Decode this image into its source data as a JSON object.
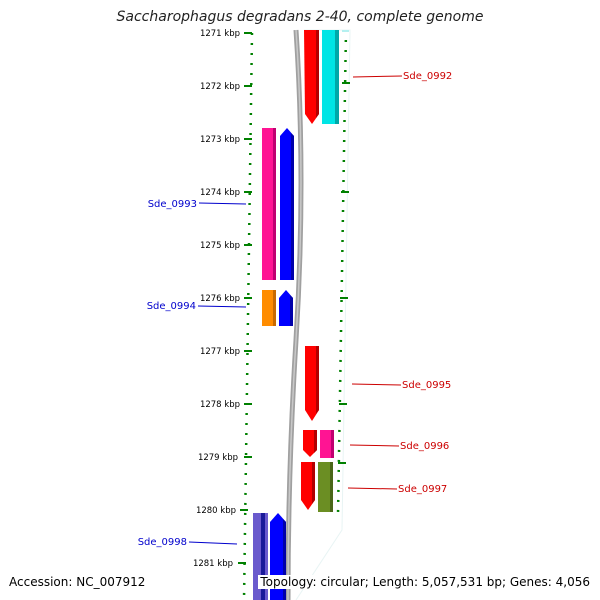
{
  "title": "Saccharophagus degradans 2-40, complete genome",
  "accession": "Accession: NC_007912",
  "summary": "Topology: circular; Length: 5,057,531 bp; Genes: 4,056",
  "ruler": {
    "ticks": [
      "1271 kbp",
      "1272 kbp",
      "1273 kbp",
      "1274 kbp",
      "1275 kbp",
      "1276 kbp",
      "1277 kbp",
      "1278 kbp",
      "1279 kbp",
      "1280 kbp",
      "1281 kbp"
    ]
  },
  "colors": {
    "red": "#ff0000",
    "cyan": "#00e5e5",
    "pink": "#ff1493",
    "blue": "#0000ff",
    "orange": "#ff8c00",
    "olive": "#6b8e23",
    "slate": "#6a5acd",
    "green_dots": "#008000",
    "label_red": "#cc0000",
    "label_blue": "#0000cc",
    "backbone": "#808080"
  },
  "genes": [
    {
      "name": "Sde_0992",
      "side": "right",
      "color": "red"
    },
    {
      "name": "Sde_0993",
      "side": "left",
      "color": "blue"
    },
    {
      "name": "Sde_0994",
      "side": "left",
      "color": "blue"
    },
    {
      "name": "Sde_0995",
      "side": "right",
      "color": "red"
    },
    {
      "name": "Sde_0996",
      "side": "right",
      "color": "red"
    },
    {
      "name": "Sde_0997",
      "side": "right",
      "color": "red"
    },
    {
      "name": "Sde_0998",
      "side": "left",
      "color": "blue"
    }
  ]
}
